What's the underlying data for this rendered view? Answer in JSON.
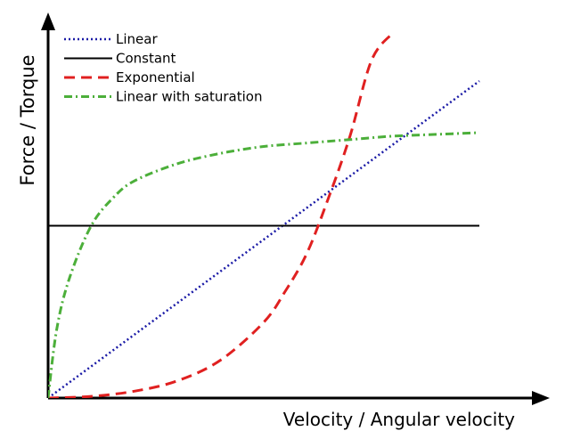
{
  "chart_data": {
    "type": "line",
    "xlabel": "Velocity / Angular velocity",
    "ylabel": "Force / Torque",
    "xlim": [
      0,
      1
    ],
    "ylim": [
      0,
      1
    ],
    "ticks": false,
    "grid": false,
    "legend_position": "top-left",
    "series": [
      {
        "name": "Linear",
        "color": "#1a1aa6",
        "dash": "dotted",
        "x": [
          0,
          1
        ],
        "y": [
          0,
          0.92
        ]
      },
      {
        "name": "Constant",
        "color": "#000000",
        "dash": "solid",
        "x": [
          0,
          1
        ],
        "y": [
          0.5,
          0.5
        ]
      },
      {
        "name": "Exponential",
        "color": "#e02020",
        "dash": "dashed",
        "x": [
          0,
          0.1,
          0.2,
          0.3,
          0.4,
          0.5,
          0.55,
          0.6,
          0.65,
          0.7,
          0.75,
          0.8
        ],
        "y": [
          0.0,
          0.005,
          0.02,
          0.05,
          0.11,
          0.22,
          0.31,
          0.42,
          0.58,
          0.76,
          0.98,
          1.06
        ]
      },
      {
        "name": "Linear with saturation",
        "color": "#4caf3a",
        "dash": "dashdot",
        "x": [
          0,
          0.02,
          0.05,
          0.1,
          0.15,
          0.2,
          0.3,
          0.4,
          0.5,
          0.6,
          0.7,
          0.8,
          0.9,
          1.0
        ],
        "y": [
          0.0,
          0.2,
          0.35,
          0.5,
          0.58,
          0.63,
          0.68,
          0.71,
          0.73,
          0.74,
          0.75,
          0.76,
          0.765,
          0.77
        ]
      }
    ]
  }
}
